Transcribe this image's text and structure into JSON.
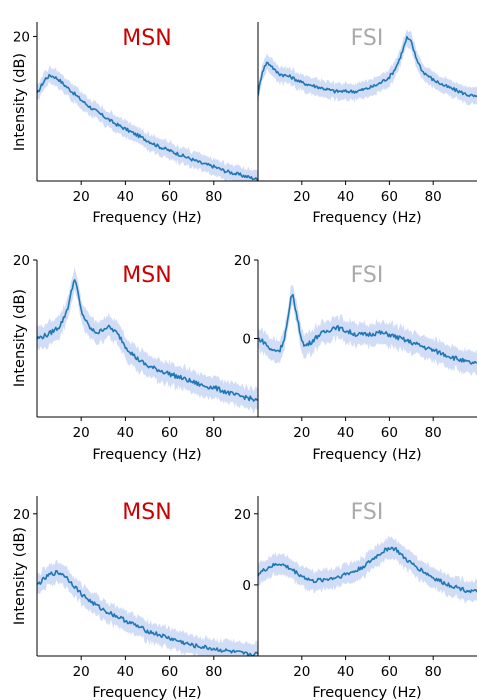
{
  "colors": {
    "line": "#1f77b4",
    "band": "#c9d6f5",
    "msn_title": "#cc0000",
    "fsi_title": "#aaaaaa",
    "axis": "#000000"
  },
  "chart_data": [
    {
      "type": "line",
      "title": "MSN",
      "title_color": "#cc0000",
      "xlabel": "Frequency (Hz)",
      "ylabel": "Intensity (dB)",
      "xlim": [
        0,
        100
      ],
      "ylim": [
        -30,
        25
      ],
      "xticks": [
        "20",
        "40",
        "60",
        "80"
      ],
      "yticks": [
        "20"
      ],
      "x": [
        0,
        2,
        4,
        6,
        8,
        10,
        12,
        15,
        20,
        25,
        30,
        35,
        40,
        45,
        50,
        55,
        60,
        65,
        70,
        75,
        80,
        85,
        90,
        95,
        100
      ],
      "y": [
        0,
        3,
        5.5,
        6.5,
        6,
        5,
        3.5,
        1.5,
        -2,
        -5,
        -7.5,
        -10,
        -12,
        -14,
        -16,
        -18,
        -19.5,
        -21,
        -22.5,
        -24,
        -25,
        -26.5,
        -27.5,
        -28.5,
        -29.5
      ]
    },
    {
      "type": "line",
      "title": "FSI",
      "title_color": "#aaaaaa",
      "xlabel": "Frequency (Hz)",
      "ylabel": "",
      "xlim": [
        0,
        100
      ],
      "ylim": [
        -30,
        25
      ],
      "xticks": [
        "20",
        "40",
        "60",
        "80"
      ],
      "yticks": [],
      "x": [
        0,
        2,
        4,
        6,
        8,
        10,
        15,
        20,
        25,
        30,
        35,
        40,
        45,
        50,
        55,
        60,
        62,
        64,
        66,
        68,
        70,
        72,
        75,
        80,
        85,
        90,
        95,
        100
      ],
      "y": [
        0,
        8,
        11,
        10,
        8,
        7,
        6,
        4,
        3,
        2,
        1,
        1,
        1,
        2,
        3.5,
        6,
        8,
        11,
        15,
        19.5,
        18,
        13,
        8,
        5,
        3,
        1.5,
        0,
        -1
      ]
    },
    {
      "type": "line",
      "title": "MSN",
      "title_color": "#cc0000",
      "xlabel": "Frequency (Hz)",
      "ylabel": "Intensity (dB)",
      "xlim": [
        0,
        100
      ],
      "ylim": [
        -20,
        20
      ],
      "xticks": [
        "20",
        "40",
        "60",
        "80"
      ],
      "yticks": [
        "20"
      ],
      "x": [
        0,
        5,
        10,
        12,
        14,
        16,
        17,
        18,
        20,
        23,
        25,
        28,
        30,
        32,
        35,
        38,
        40,
        45,
        50,
        55,
        60,
        65,
        70,
        75,
        80,
        85,
        90,
        95,
        100
      ],
      "y": [
        0,
        1,
        3,
        5,
        8,
        13,
        15.5,
        13,
        7,
        3.5,
        2,
        1.5,
        2.5,
        3,
        2,
        0,
        -2,
        -5,
        -7,
        -8,
        -9,
        -10,
        -11,
        -12,
        -12.5,
        -13.5,
        -14.5,
        -15,
        -16
      ]
    },
    {
      "type": "line",
      "title": "FSI",
      "title_color": "#aaaaaa",
      "xlabel": "Frequency (Hz)",
      "ylabel": "",
      "xlim": [
        0,
        100
      ],
      "ylim": [
        -20,
        20
      ],
      "xticks": [
        "20",
        "40",
        "60",
        "80"
      ],
      "yticks": [
        "20",
        "0"
      ],
      "x": [
        0,
        3,
        6,
        10,
        12,
        14,
        15,
        16,
        17,
        19,
        21,
        24,
        28,
        32,
        35,
        40,
        45,
        50,
        55,
        60,
        65,
        70,
        75,
        80,
        85,
        90,
        95,
        100
      ],
      "y": [
        0,
        -1,
        -3,
        -3,
        0,
        6,
        10,
        11,
        8,
        2,
        -2,
        -1,
        1,
        2,
        3,
        2,
        1,
        1,
        1.5,
        1,
        0,
        -1,
        -2,
        -3,
        -4,
        -5,
        -6,
        -6.5
      ]
    },
    {
      "type": "line",
      "title": "MSN",
      "title_color": "#cc0000",
      "xlabel": "Frequency (Hz)",
      "ylabel": "Intensity (dB)",
      "xlim": [
        0,
        100
      ],
      "ylim": [
        -20,
        25
      ],
      "xticks": [
        "20",
        "40",
        "60",
        "80"
      ],
      "yticks": [
        "20"
      ],
      "x": [
        0,
        3,
        6,
        9,
        12,
        15,
        20,
        25,
        30,
        35,
        40,
        45,
        50,
        55,
        60,
        65,
        70,
        75,
        80,
        85,
        90,
        95,
        100
      ],
      "y": [
        0,
        1.5,
        3,
        3.5,
        3,
        1,
        -2.5,
        -5,
        -7,
        -8.5,
        -10,
        -11.5,
        -13,
        -14,
        -15,
        -16,
        -17,
        -17.5,
        -18,
        -18.5,
        -19,
        -19.5,
        -19.5
      ]
    },
    {
      "type": "line",
      "title": "FSI",
      "title_color": "#aaaaaa",
      "xlabel": "Frequency (Hz)",
      "ylabel": "",
      "xlim": [
        0,
        100
      ],
      "ylim": [
        -20,
        25
      ],
      "xticks": [
        "20",
        "40",
        "60",
        "80"
      ],
      "yticks": [
        "20",
        "0"
      ],
      "x": [
        0,
        5,
        10,
        15,
        20,
        25,
        30,
        35,
        40,
        45,
        50,
        55,
        60,
        63,
        66,
        70,
        75,
        80,
        85,
        90,
        95,
        100
      ],
      "y": [
        3,
        5,
        6,
        4.5,
        2.5,
        1,
        1.5,
        2,
        3,
        4,
        6,
        8.5,
        10.5,
        10,
        8,
        6,
        4,
        2,
        0.5,
        -0.5,
        -1.5,
        -2
      ]
    }
  ]
}
